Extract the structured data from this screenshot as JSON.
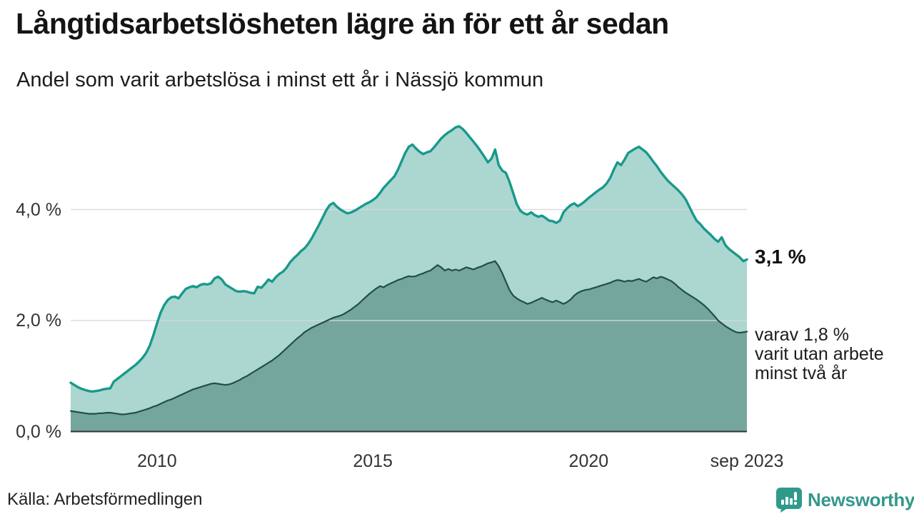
{
  "header": {
    "title": "Långtidsarbetslösheten lägre än för ett år sedan",
    "subtitle": "Andel som varit arbetslösa i minst ett år i Nässjö kommun"
  },
  "footer": {
    "source": "Källa: Arbetsförmedlingen",
    "logo_text": "Newsworthy"
  },
  "colors": {
    "accent_teal": "#18998b",
    "light_fill": "#abd7d0",
    "dark_stroke": "#204f48",
    "dark_fill": "#75a69d",
    "grid": "#d8d8d8",
    "baseline": "#333333",
    "logo_teal": "#2f9a8c"
  },
  "chart_data": {
    "type": "area",
    "title": "Långtidsarbetslösheten lägre än för ett år sedan",
    "subtitle": "Andel som varit arbetslösa i minst ett år i Nässjö kommun",
    "x_start": "2008-01",
    "x_end": "2023-09",
    "frequency": "monthly",
    "ylim": [
      0,
      5.74
    ],
    "grid": "horizontal",
    "legend_position": "none (direct labels at line ends)",
    "y_ticks": [
      {
        "label": "0,0 %",
        "value": 0.0
      },
      {
        "label": "2,0 %",
        "value": 2.0
      },
      {
        "label": "4,0 %",
        "value": 4.0
      }
    ],
    "x_ticks": [
      {
        "label": "2010",
        "month_index": 24
      },
      {
        "label": "2015",
        "month_index": 84
      },
      {
        "label": "2020",
        "month_index": 144
      },
      {
        "label": "sep 2023",
        "month_index": 188
      }
    ],
    "series": [
      {
        "name": "Andel arbetslösa minst ett år",
        "stroke": "#18998b",
        "fill": "#abd7d0",
        "stroke_width": 3.4,
        "last_value": 3.1,
        "values": [
          0.88,
          0.84,
          0.8,
          0.77,
          0.75,
          0.73,
          0.72,
          0.73,
          0.74,
          0.76,
          0.77,
          0.78,
          0.9,
          0.95,
          1.0,
          1.05,
          1.1,
          1.15,
          1.2,
          1.26,
          1.33,
          1.42,
          1.55,
          1.74,
          1.95,
          2.14,
          2.28,
          2.37,
          2.42,
          2.43,
          2.4,
          2.49,
          2.57,
          2.6,
          2.62,
          2.6,
          2.64,
          2.66,
          2.65,
          2.67,
          2.76,
          2.79,
          2.74,
          2.65,
          2.61,
          2.57,
          2.53,
          2.52,
          2.53,
          2.52,
          2.5,
          2.49,
          2.61,
          2.59,
          2.66,
          2.74,
          2.7,
          2.78,
          2.84,
          2.88,
          2.95,
          3.05,
          3.12,
          3.18,
          3.25,
          3.3,
          3.38,
          3.48,
          3.6,
          3.72,
          3.85,
          3.98,
          4.08,
          4.12,
          4.05,
          4.0,
          3.96,
          3.93,
          3.95,
          3.98,
          4.02,
          4.06,
          4.1,
          4.13,
          4.17,
          4.22,
          4.3,
          4.39,
          4.46,
          4.53,
          4.6,
          4.72,
          4.87,
          5.02,
          5.13,
          5.17,
          5.1,
          5.04,
          5.0,
          5.03,
          5.05,
          5.12,
          5.2,
          5.28,
          5.34,
          5.39,
          5.43,
          5.48,
          5.5,
          5.45,
          5.38,
          5.3,
          5.22,
          5.14,
          5.05,
          4.95,
          4.85,
          4.92,
          5.08,
          4.8,
          4.7,
          4.66,
          4.5,
          4.3,
          4.1,
          3.98,
          3.93,
          3.91,
          3.95,
          3.9,
          3.87,
          3.89,
          3.85,
          3.8,
          3.79,
          3.76,
          3.8,
          3.95,
          4.02,
          4.08,
          4.11,
          4.06,
          4.1,
          4.15,
          4.21,
          4.26,
          4.31,
          4.36,
          4.4,
          4.47,
          4.57,
          4.72,
          4.85,
          4.8,
          4.9,
          5.02,
          5.06,
          5.1,
          5.13,
          5.08,
          5.03,
          4.95,
          4.86,
          4.78,
          4.68,
          4.6,
          4.52,
          4.46,
          4.4,
          4.34,
          4.27,
          4.18,
          4.05,
          3.92,
          3.8,
          3.74,
          3.66,
          3.6,
          3.54,
          3.47,
          3.42,
          3.5,
          3.36,
          3.29,
          3.24,
          3.19,
          3.14,
          3.07,
          3.1
        ]
      },
      {
        "name": "varav utan arbete minst två år",
        "stroke": "#204f48",
        "fill": "#75a69d",
        "stroke_width": 2.2,
        "last_value": 1.8,
        "values": [
          0.37,
          0.36,
          0.35,
          0.34,
          0.33,
          0.32,
          0.32,
          0.32,
          0.33,
          0.33,
          0.34,
          0.34,
          0.33,
          0.32,
          0.31,
          0.31,
          0.32,
          0.33,
          0.34,
          0.36,
          0.38,
          0.4,
          0.42,
          0.45,
          0.47,
          0.5,
          0.53,
          0.56,
          0.58,
          0.61,
          0.64,
          0.67,
          0.7,
          0.73,
          0.76,
          0.78,
          0.8,
          0.82,
          0.84,
          0.86,
          0.87,
          0.86,
          0.85,
          0.84,
          0.85,
          0.87,
          0.9,
          0.93,
          0.97,
          1.0,
          1.04,
          1.08,
          1.12,
          1.16,
          1.2,
          1.24,
          1.28,
          1.33,
          1.38,
          1.44,
          1.5,
          1.56,
          1.62,
          1.68,
          1.73,
          1.79,
          1.83,
          1.87,
          1.9,
          1.93,
          1.96,
          1.99,
          2.02,
          2.05,
          2.07,
          2.09,
          2.12,
          2.16,
          2.2,
          2.25,
          2.3,
          2.36,
          2.42,
          2.48,
          2.53,
          2.58,
          2.62,
          2.6,
          2.64,
          2.67,
          2.7,
          2.73,
          2.75,
          2.78,
          2.8,
          2.79,
          2.8,
          2.83,
          2.85,
          2.88,
          2.9,
          2.95,
          3.0,
          2.96,
          2.9,
          2.93,
          2.9,
          2.92,
          2.9,
          2.93,
          2.96,
          2.94,
          2.92,
          2.95,
          2.97,
          3.0,
          3.03,
          3.05,
          3.07,
          2.98,
          2.85,
          2.7,
          2.55,
          2.45,
          2.4,
          2.36,
          2.33,
          2.3,
          2.32,
          2.35,
          2.38,
          2.41,
          2.38,
          2.35,
          2.33,
          2.36,
          2.33,
          2.3,
          2.33,
          2.38,
          2.45,
          2.5,
          2.53,
          2.55,
          2.56,
          2.58,
          2.6,
          2.62,
          2.64,
          2.66,
          2.68,
          2.71,
          2.73,
          2.72,
          2.7,
          2.72,
          2.71,
          2.73,
          2.75,
          2.72,
          2.7,
          2.74,
          2.78,
          2.76,
          2.79,
          2.77,
          2.74,
          2.71,
          2.66,
          2.6,
          2.55,
          2.5,
          2.46,
          2.42,
          2.38,
          2.33,
          2.28,
          2.22,
          2.15,
          2.08,
          2.0,
          1.95,
          1.9,
          1.86,
          1.82,
          1.79,
          1.78,
          1.79,
          1.8
        ]
      }
    ],
    "annotations": [
      {
        "text": "3,1 %",
        "anchor_value": 3.1,
        "bold": true
      },
      {
        "lines": [
          "varav 1,8 %",
          "varit utan arbete",
          "minst två år"
        ],
        "anchor_value": 1.8
      }
    ]
  }
}
